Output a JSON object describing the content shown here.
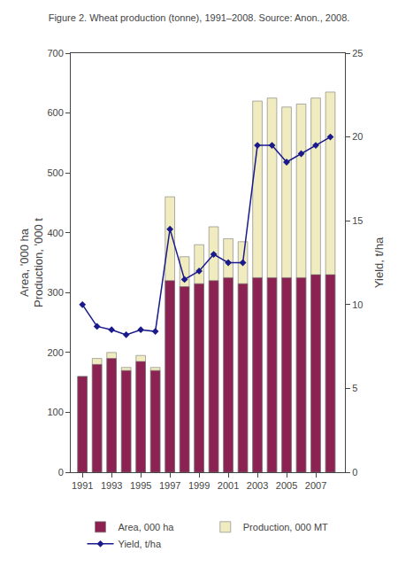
{
  "chart_data": {
    "type": "bar",
    "title": "Figure 2. Wheat production (tonne), 1991–2008. Source: Anon., 2008.",
    "x": [
      1991,
      1992,
      1993,
      1994,
      1995,
      1996,
      1997,
      1998,
      1999,
      2000,
      2001,
      2002,
      2003,
      2004,
      2005,
      2006,
      2007,
      2008
    ],
    "xlim": [
      1990.2,
      2009.0
    ],
    "xticks": [
      1991,
      1993,
      1995,
      1997,
      1999,
      2001,
      2003,
      2005,
      2007
    ],
    "ylim": [
      0,
      700
    ],
    "yticks": [
      0,
      100,
      200,
      300,
      400,
      500,
      600,
      700
    ],
    "y2lim": [
      0,
      25
    ],
    "y2ticks": [
      0,
      5,
      10,
      15,
      20,
      25
    ],
    "ylabel": "Area, '000 ha\nProduction, '000 t",
    "y2label": "Yield, t/ha",
    "grid": false,
    "legend": "bottom",
    "series": [
      {
        "name": "Area, 000 ha",
        "type": "bar",
        "color": "#8B2252",
        "values": [
          160,
          180,
          190,
          170,
          185,
          170,
          320,
          310,
          315,
          320,
          325,
          315,
          325,
          325,
          325,
          325,
          330,
          330
        ]
      },
      {
        "name": "Production, 000 MT",
        "type": "bar",
        "color": "#F0ECC0",
        "values": [
          160,
          190,
          200,
          175,
          195,
          175,
          460,
          360,
          380,
          410,
          390,
          385,
          620,
          625,
          610,
          615,
          625,
          635
        ]
      },
      {
        "name": "Yield, t/ha",
        "type": "line",
        "color": "#1a1a8c",
        "marker": "diamond",
        "line_style": "solid",
        "axis": "y2",
        "values": [
          10.0,
          8.7,
          8.5,
          8.2,
          8.5,
          8.4,
          14.5,
          11.5,
          12.0,
          13.0,
          12.5,
          12.5,
          19.5,
          19.5,
          18.5,
          19.0,
          19.5,
          20.0
        ]
      }
    ]
  }
}
